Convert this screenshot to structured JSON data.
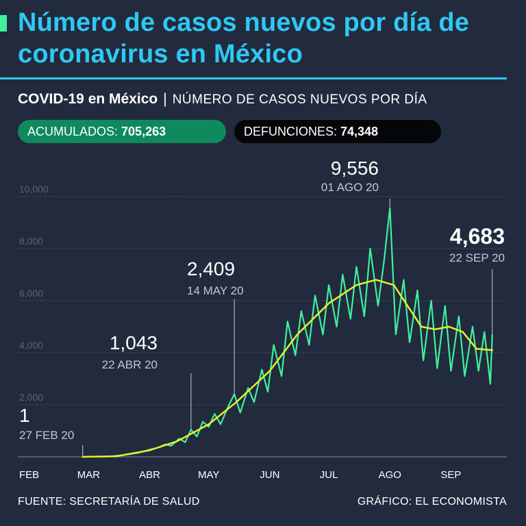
{
  "header": {
    "title": "Número de casos nuevos por día de coronavirus en México",
    "subtitle_bold": "COVID-19 en México",
    "subtitle_sep": "|",
    "subtitle_light": "NÚMERO DE CASOS NUEVOS POR DÍA"
  },
  "stats": {
    "accumulated_label": "ACUMULADOS: ",
    "accumulated_value": "705,263",
    "deaths_label": "DEFUNCIONES: ",
    "deaths_value": "74,348"
  },
  "footer": {
    "source": "FUENTE: SECRETARÍA DE SALUD",
    "credit": "GRÁFICO: EL ECONOMISTA"
  },
  "colors": {
    "background": "#222a3d",
    "title": "#2fc8f4",
    "daily_line": "#3ef19e",
    "average_line": "#e6f02e",
    "accumulated_pill": "#0e8a5c",
    "deaths_pill": "#050608"
  },
  "chart_data": {
    "type": "line",
    "title": "",
    "xlabel": "",
    "ylabel": "",
    "ylim": [
      0,
      10000
    ],
    "grid": true,
    "x_ticks": [
      "FEB",
      "MAR",
      "ABR",
      "MAY",
      "JUN",
      "JUL",
      "AGO",
      "SEP"
    ],
    "y_ticks": [
      {
        "value": 2000,
        "label": "2,000"
      },
      {
        "value": 4000,
        "label": "4,000"
      },
      {
        "value": 6000,
        "label": "6,000"
      },
      {
        "value": 8000,
        "label": "8,000"
      },
      {
        "value": 10000,
        "label": "10,000"
      }
    ],
    "series": [
      {
        "kind": "daily",
        "points": [
          [
            "2020-02-27",
            1
          ],
          [
            "2020-03-05",
            5
          ],
          [
            "2020-03-12",
            15
          ],
          [
            "2020-03-19",
            70
          ],
          [
            "2020-03-26",
            150
          ],
          [
            "2020-04-01",
            280
          ],
          [
            "2020-04-05",
            350
          ],
          [
            "2020-04-09",
            480
          ],
          [
            "2020-04-12",
            420
          ],
          [
            "2020-04-16",
            700
          ],
          [
            "2020-04-19",
            560
          ],
          [
            "2020-04-22",
            1043
          ],
          [
            "2020-04-25",
            780
          ],
          [
            "2020-04-28",
            1350
          ],
          [
            "2020-05-01",
            1150
          ],
          [
            "2020-05-04",
            1650
          ],
          [
            "2020-05-07",
            1250
          ],
          [
            "2020-05-11",
            1950
          ],
          [
            "2020-05-14",
            2409
          ],
          [
            "2020-05-17",
            1700
          ],
          [
            "2020-05-21",
            2650
          ],
          [
            "2020-05-24",
            2100
          ],
          [
            "2020-05-28",
            3350
          ],
          [
            "2020-05-31",
            2500
          ],
          [
            "2020-06-03",
            4300
          ],
          [
            "2020-06-07",
            3100
          ],
          [
            "2020-06-10",
            5200
          ],
          [
            "2020-06-14",
            3900
          ],
          [
            "2020-06-17",
            5600
          ],
          [
            "2020-06-21",
            4300
          ],
          [
            "2020-06-24",
            6200
          ],
          [
            "2020-06-28",
            4700
          ],
          [
            "2020-07-01",
            6600
          ],
          [
            "2020-07-05",
            5000
          ],
          [
            "2020-07-08",
            7000
          ],
          [
            "2020-07-12",
            5300
          ],
          [
            "2020-07-15",
            7300
          ],
          [
            "2020-07-19",
            5400
          ],
          [
            "2020-07-22",
            8000
          ],
          [
            "2020-07-26",
            5800
          ],
          [
            "2020-07-29",
            7500
          ],
          [
            "2020-08-01",
            9556
          ],
          [
            "2020-08-04",
            4700
          ],
          [
            "2020-08-08",
            6800
          ],
          [
            "2020-08-11",
            4400
          ],
          [
            "2020-08-15",
            6400
          ],
          [
            "2020-08-18",
            3700
          ],
          [
            "2020-08-22",
            6000
          ],
          [
            "2020-08-25",
            3400
          ],
          [
            "2020-08-29",
            5800
          ],
          [
            "2020-09-01",
            3300
          ],
          [
            "2020-09-05",
            5400
          ],
          [
            "2020-09-08",
            3100
          ],
          [
            "2020-09-12",
            5000
          ],
          [
            "2020-09-15",
            3300
          ],
          [
            "2020-09-18",
            4800
          ],
          [
            "2020-09-21",
            2800
          ],
          [
            "2020-09-22",
            4683
          ]
        ]
      },
      {
        "kind": "average",
        "points": [
          [
            "2020-02-27",
            0
          ],
          [
            "2020-03-15",
            20
          ],
          [
            "2020-04-01",
            250
          ],
          [
            "2020-04-15",
            600
          ],
          [
            "2020-05-01",
            1250
          ],
          [
            "2020-05-15",
            2100
          ],
          [
            "2020-06-01",
            3300
          ],
          [
            "2020-06-15",
            4700
          ],
          [
            "2020-07-01",
            5900
          ],
          [
            "2020-07-15",
            6600
          ],
          [
            "2020-07-25",
            6800
          ],
          [
            "2020-08-03",
            6600
          ],
          [
            "2020-08-10",
            5800
          ],
          [
            "2020-08-17",
            5000
          ],
          [
            "2020-08-24",
            4900
          ],
          [
            "2020-08-31",
            5000
          ],
          [
            "2020-09-07",
            4800
          ],
          [
            "2020-09-14",
            4150
          ],
          [
            "2020-09-22",
            4100
          ]
        ]
      }
    ],
    "annotations": [
      {
        "date": "2020-02-27",
        "value": 1,
        "value_label": "1",
        "date_label": "27 FEB 20"
      },
      {
        "date": "2020-04-22",
        "value": 1043,
        "value_label": "1,043",
        "date_label": "22 ABR 20"
      },
      {
        "date": "2020-05-14",
        "value": 2409,
        "value_label": "2,409",
        "date_label": "14 MAY 20"
      },
      {
        "date": "2020-08-01",
        "value": 9556,
        "value_label": "9,556",
        "date_label": "01 AGO 20"
      },
      {
        "date": "2020-09-22",
        "value": 4683,
        "value_label": "4,683",
        "date_label": "22 SEP 20",
        "emphasis": true
      }
    ]
  }
}
